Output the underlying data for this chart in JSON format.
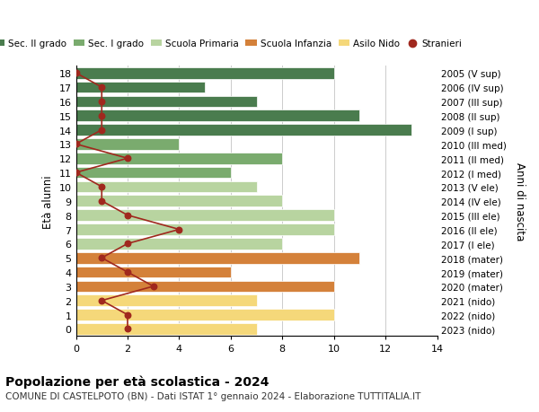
{
  "ages": [
    0,
    1,
    2,
    3,
    4,
    5,
    6,
    7,
    8,
    9,
    10,
    11,
    12,
    13,
    14,
    15,
    16,
    17,
    18
  ],
  "right_labels": [
    "2023 (nido)",
    "2022 (nido)",
    "2021 (nido)",
    "2020 (mater)",
    "2019 (mater)",
    "2018 (mater)",
    "2017 (I ele)",
    "2016 (II ele)",
    "2015 (III ele)",
    "2014 (IV ele)",
    "2013 (V ele)",
    "2012 (I med)",
    "2011 (II med)",
    "2010 (III med)",
    "2009 (I sup)",
    "2008 (II sup)",
    "2007 (III sup)",
    "2006 (IV sup)",
    "2005 (V sup)"
  ],
  "bar_values": [
    7,
    10,
    7,
    10,
    6,
    11,
    8,
    10,
    10,
    8,
    7,
    6,
    8,
    4,
    13,
    11,
    7,
    5,
    10
  ],
  "bar_colors": [
    "#f5d87a",
    "#f5d87a",
    "#f5d87a",
    "#d4813a",
    "#d4813a",
    "#d4813a",
    "#b8d4a0",
    "#b8d4a0",
    "#b8d4a0",
    "#b8d4a0",
    "#b8d4a0",
    "#7aab6e",
    "#7aab6e",
    "#7aab6e",
    "#4a7c4e",
    "#4a7c4e",
    "#4a7c4e",
    "#4a7c4e",
    "#4a7c4e"
  ],
  "stranieri_values": [
    2,
    2,
    1,
    3,
    2,
    1,
    2,
    4,
    2,
    1,
    1,
    0,
    2,
    0,
    1,
    1,
    1,
    1,
    0
  ],
  "legend_labels": [
    "Sec. II grado",
    "Sec. I grado",
    "Scuola Primaria",
    "Scuola Infanzia",
    "Asilo Nido",
    "Stranieri"
  ],
  "legend_colors": [
    "#4a7c4e",
    "#7aab6e",
    "#b8d4a0",
    "#d4813a",
    "#f5d87a",
    "#a0281e"
  ],
  "title": "Popolazione per età scolastica - 2024",
  "subtitle": "COMUNE DI CASTELPOTO (BN) - Dati ISTAT 1° gennaio 2024 - Elaborazione TUTTITALIA.IT",
  "ylabel_left": "Età alunni",
  "ylabel_right": "Anni di nascita",
  "xlim": [
    0,
    14
  ],
  "xticks": [
    0,
    2,
    4,
    6,
    8,
    10,
    12,
    14
  ],
  "background_color": "#ffffff",
  "grid_color": "#cccccc"
}
